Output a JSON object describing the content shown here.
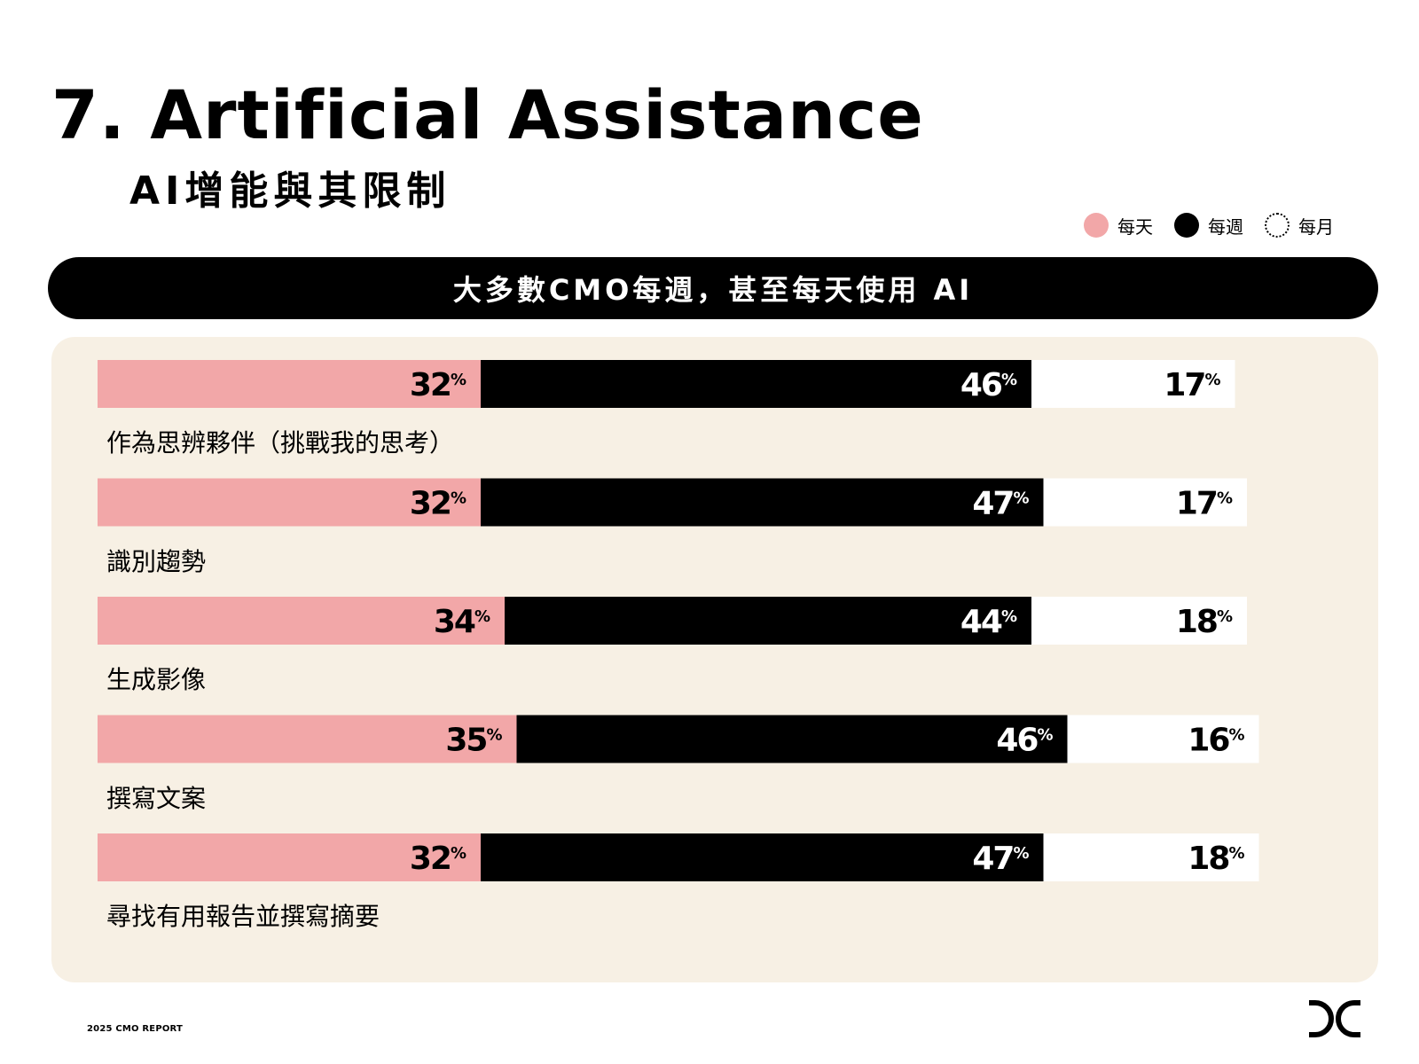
{
  "page": {
    "title": "7. Artificial Assistance",
    "subtitle": "AI增能與其限制",
    "banner": "大多數CMO每週，甚至每天使用 AI",
    "footer": "2025 CMO REPORT",
    "logo_icon": "dc-logo-icon"
  },
  "legend": [
    {
      "label": "每天",
      "color": "#f2a7a8",
      "style": "filled"
    },
    {
      "label": "每週",
      "color": "#000000",
      "style": "filled"
    },
    {
      "label": "每月",
      "color": "#ffffff",
      "style": "dotted"
    }
  ],
  "chart_data": {
    "type": "bar",
    "orientation": "horizontal",
    "stacked": true,
    "title": "大多數CMO每週，甚至每天使用 AI",
    "categories": [
      "作為思辨夥伴（挑戰我的思考）",
      "識別趨勢",
      "生成影像",
      "撰寫文案",
      "尋找有用報告並撰寫摘要"
    ],
    "series": [
      {
        "name": "每天",
        "color": "#f2a7a8",
        "label_color": "#000000",
        "values": [
          32,
          32,
          34,
          35,
          32
        ]
      },
      {
        "name": "每週",
        "color": "#000000",
        "label_color": "#ffffff",
        "values": [
          46,
          47,
          44,
          46,
          47
        ]
      },
      {
        "name": "每月",
        "color": "#ffffff",
        "label_color": "#000000",
        "values": [
          17,
          17,
          18,
          16,
          18
        ]
      }
    ],
    "value_suffix": "%",
    "xlim": [
      0,
      100
    ],
    "grid": false,
    "legend_position": "top-right"
  }
}
